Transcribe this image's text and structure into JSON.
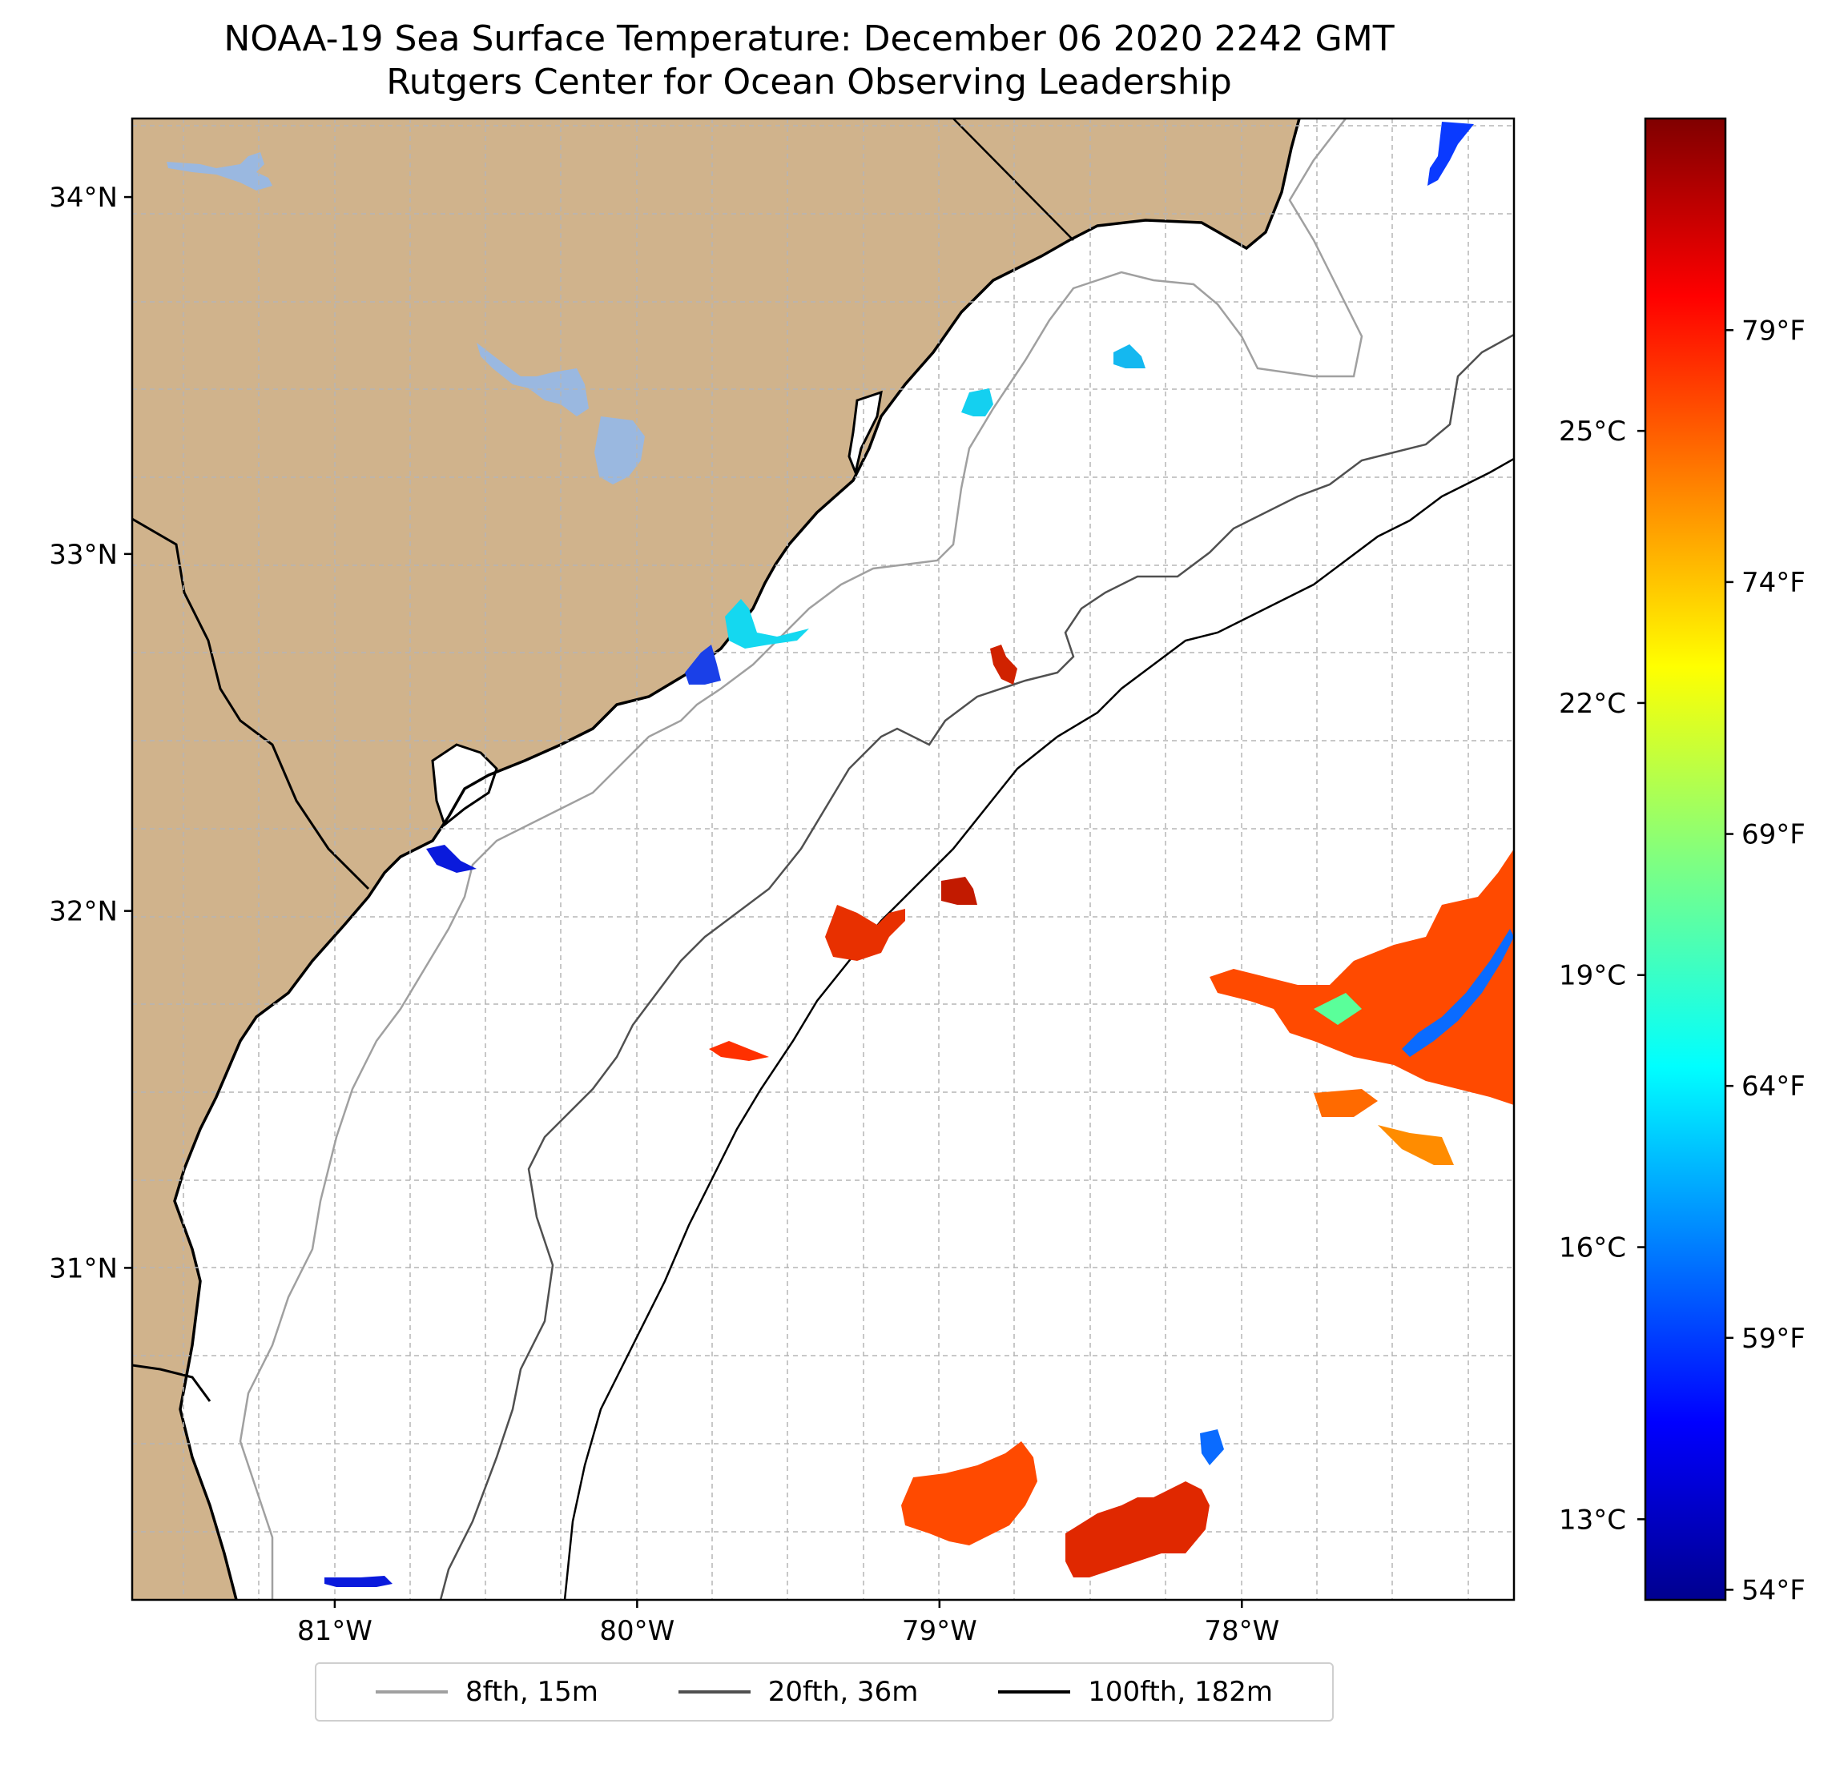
{
  "title": {
    "line1": "NOAA-19 Sea Surface Temperature: December 06 2020 2242 GMT",
    "line2": "Rutgers Center for Ocean Observing Leadership"
  },
  "map": {
    "lon_range": [
      -81.67,
      -77.1
    ],
    "lat_range": [
      30.07,
      34.22
    ],
    "land_color": "#d0b38c",
    "water_color": "#ffffff",
    "lake_color": "#9ab8e0",
    "gridlines": true,
    "lat_ticks": [
      {
        "value": 34,
        "label": "34°N"
      },
      {
        "value": 33,
        "label": "33°N"
      },
      {
        "value": 32,
        "label": "32°N"
      },
      {
        "value": 31,
        "label": "31°N"
      }
    ],
    "lon_ticks": [
      {
        "value": -81,
        "label": "81°W"
      },
      {
        "value": -80,
        "label": "80°W"
      },
      {
        "value": -79,
        "label": "79°W"
      },
      {
        "value": -78,
        "label": "78°W"
      }
    ],
    "sst_patches": [
      {
        "region": "east-warm-core",
        "temp_f": 77
      },
      {
        "region": "east-cold-streak",
        "temp_f": 60
      },
      {
        "region": "south-warm-a",
        "temp_f": 77
      },
      {
        "region": "south-warm-b",
        "temp_f": 78
      },
      {
        "region": "mid-warm-a",
        "temp_f": 79
      },
      {
        "region": "mid-warm-b",
        "temp_f": 80
      },
      {
        "region": "mid-warm-c",
        "temp_f": 80
      },
      {
        "region": "mid-warm-d",
        "temp_f": 79
      },
      {
        "region": "nearshore-cool-a",
        "temp_f": 64
      },
      {
        "region": "nearshore-cool-b",
        "temp_f": 57
      },
      {
        "region": "nearshore-cool-c",
        "temp_f": 55
      }
    ]
  },
  "colorbar": {
    "colormap": "jet",
    "celsius_ticks": [
      {
        "value": 13,
        "label": "13°C"
      },
      {
        "value": 16,
        "label": "16°C"
      },
      {
        "value": 19,
        "label": "19°C"
      },
      {
        "value": 22,
        "label": "22°C"
      },
      {
        "value": 25,
        "label": "25°C"
      }
    ],
    "fahrenheit_ticks": [
      {
        "value": 54,
        "label": "54°F"
      },
      {
        "value": 59,
        "label": "59°F"
      },
      {
        "value": 64,
        "label": "64°F"
      },
      {
        "value": 69,
        "label": "69°F"
      },
      {
        "value": 74,
        "label": "74°F"
      },
      {
        "value": 79,
        "label": "79°F"
      }
    ],
    "range_f": [
      53.8,
      83.2
    ]
  },
  "legend": {
    "entries": [
      {
        "label": "8fth, 15m",
        "color": "#a0a0a0"
      },
      {
        "label": "20fth, 36m",
        "color": "#505050"
      },
      {
        "label": "100fth, 182m",
        "color": "#000000"
      }
    ]
  }
}
